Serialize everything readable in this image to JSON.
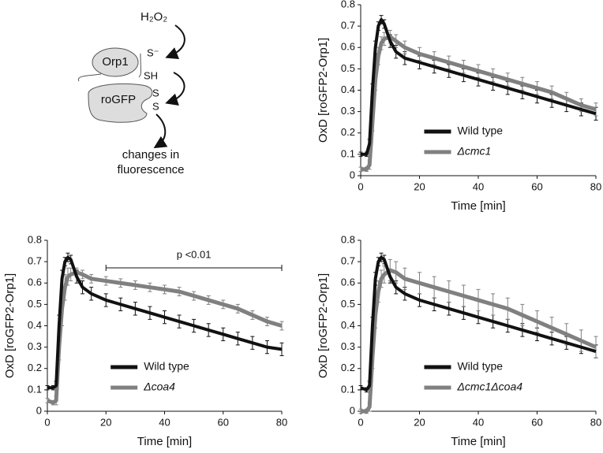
{
  "diagram": {
    "oxidant": "H₂O₂",
    "sensor": "Orp1",
    "sulfenate": "S⁻",
    "thiol": "SH",
    "reporter": "roGFP",
    "disulfide_a": "S",
    "disulfide_b": "S",
    "outcome": [
      "changes in",
      "fluorescence"
    ]
  },
  "chart_data": [
    {
      "type": "line",
      "xlabel": "Time [min]",
      "ylabel": "OxD [roGFP2-Orp1]",
      "xlim": [
        0,
        80
      ],
      "xticks": [
        0,
        20,
        40,
        60,
        80
      ],
      "ylim": [
        0,
        0.8
      ],
      "yticks": [
        0,
        0.1,
        0.2,
        0.3,
        0.4,
        0.5,
        0.6,
        0.7,
        0.8
      ],
      "legend": "lower center",
      "x": [
        0,
        2,
        3,
        4,
        5,
        6,
        7,
        8,
        10,
        12,
        15,
        20,
        25,
        30,
        35,
        40,
        45,
        50,
        55,
        60,
        65,
        70,
        75,
        80
      ],
      "series": [
        {
          "name": "Wild type",
          "color": "#111111",
          "values": [
            0.1,
            0.1,
            0.15,
            0.4,
            0.6,
            0.7,
            0.73,
            0.71,
            0.63,
            0.58,
            0.55,
            0.53,
            0.51,
            0.49,
            0.47,
            0.45,
            0.43,
            0.41,
            0.39,
            0.37,
            0.35,
            0.33,
            0.31,
            0.29
          ],
          "errors": [
            0.01,
            0.01,
            0.02,
            0.03,
            0.03,
            0.02,
            0.02,
            0.02,
            0.03,
            0.03,
            0.03,
            0.03,
            0.03,
            0.03,
            0.03,
            0.03,
            0.03,
            0.03,
            0.03,
            0.03,
            0.03,
            0.03,
            0.03,
            0.03
          ]
        },
        {
          "name": "Δcmc1",
          "color": "#808080",
          "values": [
            0.03,
            0.03,
            0.05,
            0.25,
            0.45,
            0.56,
            0.62,
            0.64,
            0.65,
            0.63,
            0.6,
            0.57,
            0.55,
            0.53,
            0.51,
            0.49,
            0.47,
            0.45,
            0.43,
            0.41,
            0.39,
            0.36,
            0.33,
            0.31
          ],
          "errors": [
            0.01,
            0.01,
            0.02,
            0.04,
            0.05,
            0.04,
            0.03,
            0.03,
            0.03,
            0.03,
            0.03,
            0.03,
            0.03,
            0.03,
            0.03,
            0.03,
            0.03,
            0.03,
            0.03,
            0.03,
            0.03,
            0.03,
            0.03,
            0.03
          ]
        }
      ]
    },
    {
      "type": "line",
      "xlabel": "Time [min]",
      "ylabel": "OxD [roGFP2-Orp1]",
      "xlim": [
        0,
        80
      ],
      "xticks": [
        0,
        20,
        40,
        60,
        80
      ],
      "ylim": [
        0,
        0.8
      ],
      "yticks": [
        0,
        0.1,
        0.2,
        0.3,
        0.4,
        0.5,
        0.6,
        0.7,
        0.8
      ],
      "legend": "lower center",
      "annotation": "p <0.01",
      "x": [
        0,
        2,
        3,
        4,
        5,
        6,
        7,
        8,
        10,
        12,
        15,
        20,
        25,
        30,
        35,
        40,
        45,
        50,
        55,
        60,
        65,
        70,
        75,
        80
      ],
      "series": [
        {
          "name": "Wild type",
          "color": "#111111",
          "values": [
            0.11,
            0.11,
            0.12,
            0.4,
            0.62,
            0.7,
            0.72,
            0.71,
            0.63,
            0.58,
            0.55,
            0.52,
            0.5,
            0.48,
            0.46,
            0.44,
            0.42,
            0.4,
            0.38,
            0.36,
            0.34,
            0.32,
            0.3,
            0.29
          ],
          "errors": [
            0.01,
            0.01,
            0.02,
            0.05,
            0.04,
            0.02,
            0.02,
            0.02,
            0.03,
            0.03,
            0.03,
            0.03,
            0.03,
            0.03,
            0.03,
            0.03,
            0.03,
            0.03,
            0.03,
            0.03,
            0.03,
            0.03,
            0.03,
            0.03
          ]
        },
        {
          "name": "Δcoa4",
          "color": "#808080",
          "values": [
            0.05,
            0.04,
            0.05,
            0.3,
            0.48,
            0.58,
            0.63,
            0.64,
            0.65,
            0.64,
            0.62,
            0.61,
            0.6,
            0.59,
            0.58,
            0.57,
            0.56,
            0.54,
            0.52,
            0.5,
            0.48,
            0.45,
            0.42,
            0.4
          ],
          "errors": [
            0.01,
            0.01,
            0.02,
            0.06,
            0.08,
            0.06,
            0.04,
            0.03,
            0.02,
            0.02,
            0.02,
            0.02,
            0.02,
            0.02,
            0.02,
            0.02,
            0.02,
            0.02,
            0.02,
            0.02,
            0.02,
            0.02,
            0.02,
            0.02
          ]
        }
      ]
    },
    {
      "type": "line",
      "xlabel": "Time [min]",
      "ylabel": "OxD [roGFP2-Orp1]",
      "xlim": [
        0,
        80
      ],
      "xticks": [
        0,
        20,
        40,
        60,
        80
      ],
      "ylim": [
        0,
        0.8
      ],
      "yticks": [
        0,
        0.1,
        0.2,
        0.3,
        0.4,
        0.5,
        0.6,
        0.7,
        0.8
      ],
      "legend": "lower center",
      "x": [
        0,
        2,
        3,
        4,
        5,
        6,
        7,
        8,
        10,
        12,
        15,
        20,
        25,
        30,
        35,
        40,
        45,
        50,
        55,
        60,
        65,
        70,
        75,
        80
      ],
      "series": [
        {
          "name": "Wild type",
          "color": "#111111",
          "values": [
            0.11,
            0.1,
            0.12,
            0.4,
            0.62,
            0.7,
            0.72,
            0.71,
            0.63,
            0.58,
            0.55,
            0.52,
            0.5,
            0.48,
            0.46,
            0.44,
            0.42,
            0.4,
            0.38,
            0.36,
            0.34,
            0.32,
            0.3,
            0.28
          ],
          "errors": [
            0.01,
            0.01,
            0.02,
            0.04,
            0.03,
            0.02,
            0.02,
            0.02,
            0.03,
            0.03,
            0.03,
            0.03,
            0.03,
            0.03,
            0.03,
            0.03,
            0.03,
            0.03,
            0.03,
            0.03,
            0.03,
            0.03,
            0.03,
            0.03
          ]
        },
        {
          "name": "Δcmc1Δcoa4",
          "color": "#808080",
          "values": [
            0.0,
            0.0,
            0.02,
            0.25,
            0.45,
            0.56,
            0.62,
            0.64,
            0.66,
            0.65,
            0.62,
            0.6,
            0.58,
            0.56,
            0.54,
            0.52,
            0.5,
            0.48,
            0.45,
            0.42,
            0.39,
            0.36,
            0.33,
            0.3
          ],
          "errors": [
            0.01,
            0.01,
            0.02,
            0.05,
            0.06,
            0.05,
            0.04,
            0.04,
            0.05,
            0.05,
            0.05,
            0.05,
            0.05,
            0.05,
            0.05,
            0.05,
            0.05,
            0.05,
            0.05,
            0.05,
            0.05,
            0.05,
            0.05,
            0.05
          ]
        }
      ]
    }
  ]
}
